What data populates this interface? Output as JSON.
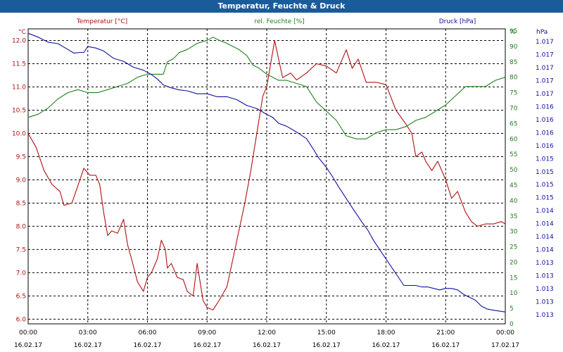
{
  "window": {
    "title": "Temperatur, Feuchte & Druck"
  },
  "chart_data": {
    "type": "line",
    "xlim": [
      0,
      24
    ],
    "x_ticks": [
      {
        "x": 0,
        "time": "00:00",
        "date": "16.02.17"
      },
      {
        "x": 3,
        "time": "03:00",
        "date": "16.02.17"
      },
      {
        "x": 6,
        "time": "06:00",
        "date": "16.02.17"
      },
      {
        "x": 9,
        "time": "09:00",
        "date": "16.02.17"
      },
      {
        "x": 12,
        "time": "12:00",
        "date": "16.02.17"
      },
      {
        "x": 15,
        "time": "15:00",
        "date": "16.02.17"
      },
      {
        "x": 18,
        "time": "18:00",
        "date": "16.02.17"
      },
      {
        "x": 21,
        "time": "21:00",
        "date": "16.02.17"
      },
      {
        "x": 24,
        "time": "00:00",
        "date": "17.02.17"
      }
    ],
    "grid": true,
    "axes": {
      "temperature": {
        "unit": "°C",
        "ylim": [
          5.9,
          12.25
        ],
        "ticks": [
          "6.0",
          "6.5",
          "7.0",
          "7.5",
          "8.0",
          "8.5",
          "9.0",
          "9.5",
          "10.0",
          "10.5",
          "11.0",
          "11.5",
          "12.0"
        ],
        "color": "#b01010"
      },
      "humidity": {
        "unit": "%",
        "ylim": [
          0,
          95.7
        ],
        "ticks": [
          "0",
          "5",
          "10",
          "15",
          "20",
          "25",
          "30",
          "35",
          "40",
          "45",
          "50",
          "55",
          "60",
          "65",
          "70",
          "75",
          "80",
          "85",
          "90",
          "95"
        ],
        "color": "#208020"
      },
      "pressure": {
        "unit": "hPa",
        "tick_labels": [
          "1.013",
          "1.013",
          "1.013",
          "1.013",
          "1.013",
          "1.014",
          "1.014",
          "1.014",
          "1.014",
          "1.015",
          "1.015",
          "1.015",
          "1.015",
          "1.016",
          "1.016",
          "1.016",
          "1.016",
          "1.017",
          "1.017",
          "1.017",
          "1.017",
          "1.017"
        ],
        "color": "#1010a0"
      }
    },
    "series": [
      {
        "name": "Temperatur [°C]",
        "axis": "temperature",
        "color": "#b01010",
        "x": [
          0,
          0.4,
          0.8,
          1.2,
          1.6,
          1.8,
          2.2,
          2.6,
          2.8,
          3.1,
          3.4,
          3.6,
          3.8,
          4.0,
          4.2,
          4.5,
          4.8,
          5.0,
          5.2,
          5.5,
          5.8,
          6.0,
          6.2,
          6.5,
          6.7,
          6.9,
          7.0,
          7.2,
          7.5,
          7.8,
          8.0,
          8.3,
          8.5,
          8.8,
          9.0,
          9.3,
          9.6,
          10.0,
          10.3,
          10.6,
          10.9,
          11.2,
          11.5,
          11.8,
          12.0,
          12.2,
          12.4,
          12.6,
          12.8,
          13.0,
          13.2,
          13.5,
          14.0,
          14.5,
          15.0,
          15.5,
          16.0,
          16.3,
          16.6,
          17.0,
          17.5,
          18.0,
          18.5,
          19.0,
          19.3,
          19.5,
          19.8,
          20.0,
          20.3,
          20.6,
          21.0,
          21.3,
          21.6,
          22.0,
          22.3,
          22.6,
          23.0,
          23.4,
          23.8,
          24.0
        ],
        "y": [
          10.0,
          9.7,
          9.2,
          8.9,
          8.75,
          8.45,
          8.5,
          9.0,
          9.25,
          9.1,
          9.1,
          8.9,
          8.3,
          7.8,
          7.9,
          7.85,
          8.15,
          7.6,
          7.3,
          6.8,
          6.6,
          6.9,
          7.0,
          7.3,
          7.7,
          7.5,
          7.1,
          7.2,
          6.9,
          6.85,
          6.6,
          6.5,
          7.2,
          6.4,
          6.25,
          6.2,
          6.4,
          6.7,
          7.3,
          7.9,
          8.5,
          9.2,
          10.0,
          10.8,
          11.0,
          11.5,
          12.0,
          11.6,
          11.2,
          11.25,
          11.3,
          11.15,
          11.3,
          11.5,
          11.45,
          11.3,
          11.8,
          11.4,
          11.6,
          11.1,
          11.1,
          11.05,
          10.5,
          10.2,
          10.0,
          9.5,
          9.6,
          9.4,
          9.2,
          9.4,
          9.0,
          8.6,
          8.75,
          8.3,
          8.1,
          8.0,
          8.05,
          8.05,
          8.1,
          8.05
        ]
      },
      {
        "name": "rel. Feuchte [%]",
        "axis": "humidity",
        "color": "#208020",
        "x": [
          0,
          0.5,
          1.0,
          1.5,
          2.0,
          2.5,
          3.0,
          3.5,
          4.0,
          4.5,
          5.0,
          5.5,
          6.0,
          6.5,
          6.8,
          7.0,
          7.3,
          7.6,
          8.0,
          8.5,
          9.0,
          9.3,
          9.6,
          10.0,
          10.3,
          10.6,
          11.0,
          11.3,
          11.6,
          12.0,
          12.3,
          12.6,
          13.0,
          13.5,
          14.0,
          14.5,
          15.0,
          15.5,
          16.0,
          16.5,
          17.0,
          17.5,
          18.0,
          18.5,
          19.0,
          19.5,
          20.0,
          20.5,
          21.0,
          21.5,
          22.0,
          22.5,
          23.0,
          23.5,
          24.0
        ],
        "y": [
          67,
          68,
          70,
          73,
          75,
          76,
          75,
          75,
          76,
          77,
          78,
          80,
          81,
          81,
          81,
          85,
          86,
          88,
          89,
          91,
          92,
          93,
          92,
          91,
          90,
          89,
          87,
          84,
          83,
          81,
          80,
          79,
          79,
          78,
          77,
          72,
          69,
          66,
          61,
          60,
          60,
          62,
          63,
          63,
          64,
          66,
          67,
          69,
          71,
          74,
          77,
          77,
          77,
          79,
          80
        ]
      },
      {
        "name": "Druck [hPa]",
        "axis": "pressure",
        "color": "#1010a0",
        "y_frac": [
          0.985,
          0.972,
          0.955,
          0.95,
          0.93,
          0.918,
          0.92,
          0.92,
          0.94,
          0.935,
          0.925,
          0.9,
          0.89,
          0.87,
          0.86,
          0.845,
          0.83,
          0.81,
          0.8,
          0.793,
          0.79,
          0.78,
          0.78,
          0.77,
          0.77,
          0.76,
          0.74,
          0.73,
          0.71,
          0.7,
          0.68,
          0.67,
          0.65,
          0.628,
          0.597,
          0.564,
          0.53,
          0.5,
          0.466,
          0.435,
          0.404,
          0.374,
          0.344,
          0.316,
          0.28,
          0.25,
          0.22,
          0.19,
          0.16,
          0.13,
          0.13,
          0.13,
          0.125,
          0.125,
          0.12,
          0.115,
          0.12,
          0.12,
          0.115,
          0.1,
          0.09,
          0.08,
          0.06,
          0.05,
          0.045,
          0.04
        ],
        "x": [
          0,
          0.5,
          1.0,
          1.5,
          2.0,
          2.3,
          2.6,
          2.8,
          3.0,
          3.4,
          3.8,
          4.3,
          4.8,
          5.3,
          5.8,
          6.2,
          6.5,
          6.8,
          7.2,
          7.6,
          8.0,
          8.5,
          9.0,
          9.5,
          10.0,
          10.5,
          11.0,
          11.5,
          12.0,
          12.3,
          12.6,
          13.0,
          13.5,
          14.0,
          14.3,
          14.6,
          15.0,
          15.3,
          15.6,
          15.9,
          16.2,
          16.5,
          16.8,
          17.1,
          17.4,
          17.7,
          18.0,
          18.3,
          18.6,
          18.9,
          19.2,
          19.5,
          19.8,
          20.1,
          20.4,
          20.7,
          21.0,
          21.3,
          21.6,
          21.9,
          22.2,
          22.5,
          22.8,
          23.1,
          23.5,
          24.0
        ]
      }
    ]
  }
}
